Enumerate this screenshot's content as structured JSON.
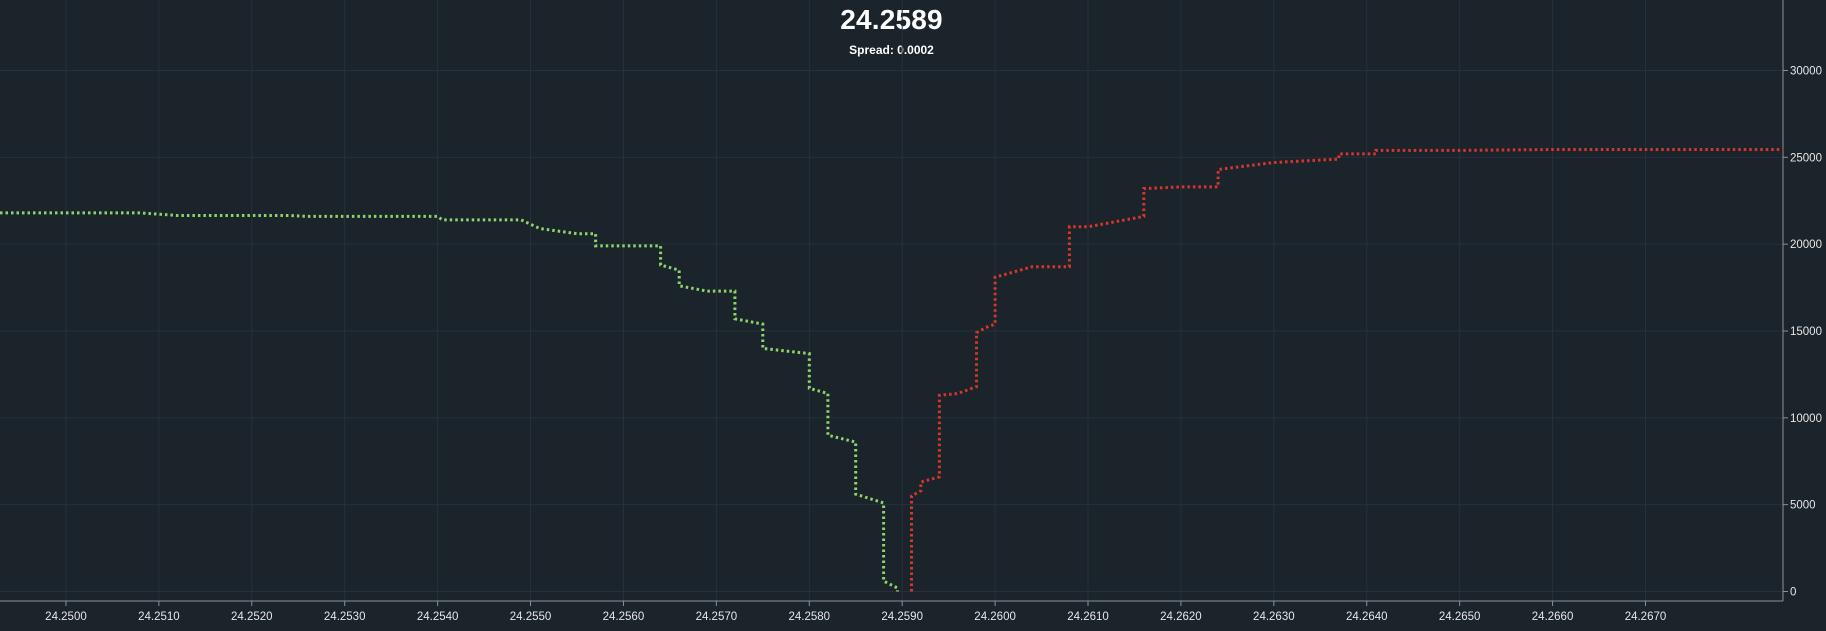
{
  "header": {
    "price": "24.2589",
    "spread": "Spread: 0.0002"
  },
  "colors": {
    "background": "#1b232b",
    "grid": "#26313b",
    "bids": "#8fd46a",
    "asks": "#d8362b",
    "axis_text": "#e6e6e6"
  },
  "chart_data": {
    "type": "line",
    "title": "24.2589",
    "subtitle": "Spread: 0.0002",
    "xlabel": "",
    "ylabel": "",
    "xlim": [
      24.24929,
      24.26848
    ],
    "ylim": [
      0,
      34000
    ],
    "grid": true,
    "legend": "none",
    "line_style": "dotted",
    "x_ticks": [
      "24.2500",
      "24.2510",
      "24.2520",
      "24.2530",
      "24.2540",
      "24.2550",
      "24.2560",
      "24.2570",
      "24.2580",
      "24.2590",
      "24.2600",
      "24.2610",
      "24.2620",
      "24.2630",
      "24.2640",
      "24.2650",
      "24.2660",
      "24.2670"
    ],
    "y_ticks": [
      "0",
      "5000",
      "10000",
      "15000",
      "20000",
      "25000",
      "30000"
    ],
    "series": [
      {
        "color": "#8fd46a",
        "points": [
          [
            24.24929,
            21800
          ],
          [
            24.2508,
            21800
          ],
          [
            24.2512,
            21650
          ],
          [
            24.2524,
            21650
          ],
          [
            24.2526,
            21600
          ],
          [
            24.254,
            21600
          ],
          [
            24.25405,
            21400
          ],
          [
            24.2549,
            21400
          ],
          [
            24.2551,
            20900
          ],
          [
            24.2555,
            20600
          ],
          [
            24.2557,
            20600
          ],
          [
            24.2557,
            19900
          ],
          [
            24.2564,
            19900
          ],
          [
            24.2564,
            18800
          ],
          [
            24.2566,
            18500
          ],
          [
            24.2566,
            17600
          ],
          [
            24.2569,
            17300
          ],
          [
            24.2572,
            17300
          ],
          [
            24.2572,
            15700
          ],
          [
            24.2575,
            15400
          ],
          [
            24.2575,
            14000
          ],
          [
            24.258,
            13700
          ],
          [
            24.258,
            11700
          ],
          [
            24.2582,
            11400
          ],
          [
            24.2582,
            9000
          ],
          [
            24.2585,
            8600
          ],
          [
            24.2585,
            5600
          ],
          [
            24.2588,
            5100
          ],
          [
            24.2588,
            600
          ],
          [
            24.25895,
            200
          ],
          [
            24.25895,
            0
          ]
        ]
      },
      {
        "color": "#d8362b",
        "points": [
          [
            24.2591,
            0
          ],
          [
            24.2591,
            5500
          ],
          [
            24.2592,
            5800
          ],
          [
            24.2592,
            6300
          ],
          [
            24.2594,
            6600
          ],
          [
            24.2594,
            11300
          ],
          [
            24.2596,
            11400
          ],
          [
            24.2598,
            11800
          ],
          [
            24.2598,
            14900
          ],
          [
            24.2599,
            15200
          ],
          [
            24.26,
            15400
          ],
          [
            24.26,
            18100
          ],
          [
            24.2604,
            18700
          ],
          [
            24.2608,
            18700
          ],
          [
            24.2608,
            21000
          ],
          [
            24.261,
            21000
          ],
          [
            24.2616,
            21600
          ],
          [
            24.2616,
            23200
          ],
          [
            24.262,
            23300
          ],
          [
            24.2624,
            23300
          ],
          [
            24.2624,
            24300
          ],
          [
            24.263,
            24700
          ],
          [
            24.2637,
            24900
          ],
          [
            24.2637,
            25200
          ],
          [
            24.2641,
            25200
          ],
          [
            24.2641,
            25400
          ],
          [
            24.265,
            25400
          ],
          [
            24.266,
            25450
          ],
          [
            24.267,
            25450
          ],
          [
            24.26848,
            25450
          ]
        ]
      }
    ]
  }
}
